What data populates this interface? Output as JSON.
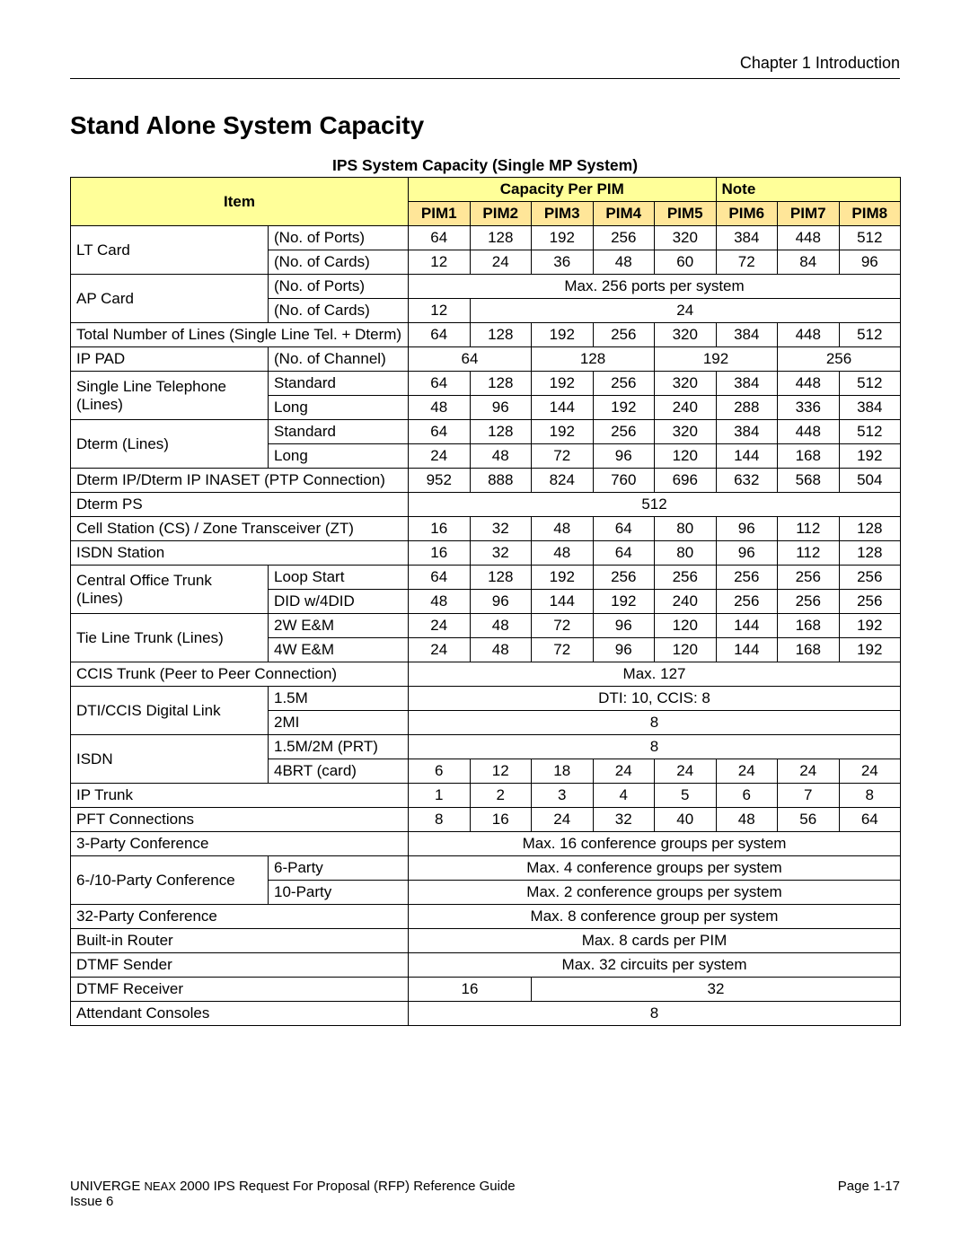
{
  "page": {
    "chapter_label": "Chapter 1   Introduction",
    "main_title": "Stand Alone System Capacity",
    "table_title": "IPS System Capacity (Single MP System)",
    "footer_left_line1_a": "UNIVERGE ",
    "footer_left_line1_b": "NEAX",
    "footer_left_line1_c": " 2000 IPS Request For Proposal (RFP) Reference Guide",
    "footer_left_line2": "Issue 6",
    "footer_right": "Page 1-17"
  },
  "colors": {
    "header_item_bg": "#ffff99",
    "header_pim_bg": "#ffe699",
    "border": "#000000",
    "text": "#000000",
    "background": "#ffffff"
  },
  "headers": {
    "item": "Item",
    "cap_per_pim": "Capacity Per PIM",
    "note": "Note",
    "pims": [
      "PIM1",
      "PIM2",
      "PIM3",
      "PIM4",
      "PIM5",
      "PIM6",
      "PIM7",
      "PIM8"
    ]
  },
  "rows": {
    "lt_card": {
      "label": "LT Card",
      "sub1": "(No. of Ports)",
      "sub2": "(No. of Cards)",
      "ports": [
        "64",
        "128",
        "192",
        "256",
        "320",
        "384",
        "448",
        "512"
      ],
      "cards": [
        "12",
        "24",
        "36",
        "48",
        "60",
        "72",
        "84",
        "96"
      ]
    },
    "ap_card": {
      "label": "AP Card",
      "sub1": "(No. of Ports)",
      "sub2": "(No. of Cards)",
      "ports_text": "Max. 256 ports per system",
      "cards_first": "12",
      "cards_rest": "24"
    },
    "total_lines": {
      "label": "Total Number of Lines (Single Line Tel. + Dterm)",
      "vals": [
        "64",
        "128",
        "192",
        "256",
        "320",
        "384",
        "448",
        "512"
      ]
    },
    "ip_pad": {
      "label": "IP PAD",
      "sub": "(No. of Channel)",
      "vals_pairs": [
        "64",
        "128",
        "192",
        "256"
      ]
    },
    "slt": {
      "label": "Single Line Telephone (Lines)",
      "std_label": "Standard",
      "long_label": "Long",
      "std": [
        "64",
        "128",
        "192",
        "256",
        "320",
        "384",
        "448",
        "512"
      ],
      "long": [
        "48",
        "96",
        "144",
        "192",
        "240",
        "288",
        "336",
        "384"
      ]
    },
    "dterm_lines": {
      "label": "Dterm (Lines)",
      "std_label": "Standard",
      "long_label": "Long",
      "std": [
        "64",
        "128",
        "192",
        "256",
        "320",
        "384",
        "448",
        "512"
      ],
      "long": [
        "24",
        "48",
        "72",
        "96",
        "120",
        "144",
        "168",
        "192"
      ]
    },
    "dterm_ip_ptp": {
      "label": "Dterm IP/Dterm IP INASET (PTP Connection)",
      "vals": [
        "952",
        "888",
        "824",
        "760",
        "696",
        "632",
        "568",
        "504"
      ]
    },
    "dterm_ps": {
      "label": "Dterm PS",
      "val": "512"
    },
    "cell_station": {
      "label": "Cell Station (CS) / Zone Transceiver (ZT)",
      "vals": [
        "16",
        "32",
        "48",
        "64",
        "80",
        "96",
        "112",
        "128"
      ]
    },
    "isdn_station": {
      "label": "ISDN Station",
      "vals": [
        "16",
        "32",
        "48",
        "64",
        "80",
        "96",
        "112",
        "128"
      ]
    },
    "co_trunk": {
      "label": "Central Office Trunk (Lines)",
      "loop_label": "Loop Start",
      "did_label": "DID w/4DID",
      "loop": [
        "64",
        "128",
        "192",
        "256",
        "256",
        "256",
        "256",
        "256"
      ],
      "did": [
        "48",
        "96",
        "144",
        "192",
        "240",
        "256",
        "256",
        "256"
      ]
    },
    "tie_line": {
      "label": "Tie Line Trunk (Lines)",
      "l2w": "2W E&M",
      "l4w": "4W E&M",
      "v2w": [
        "24",
        "48",
        "72",
        "96",
        "120",
        "144",
        "168",
        "192"
      ],
      "v4w": [
        "24",
        "48",
        "72",
        "96",
        "120",
        "144",
        "168",
        "192"
      ]
    },
    "ccis_trunk": {
      "label": "CCIS Trunk  (Peer to Peer Connection)",
      "val": "Max. 127"
    },
    "dti_ccis": {
      "label": "DTI/CCIS Digital Link",
      "l15": "1.5M",
      "l2": "2MI",
      "v15": "DTI: 10, CCIS: 8",
      "v2": "8"
    },
    "isdn": {
      "label": "ISDN",
      "l15_2m": "1.5M/2M (PRT)",
      "l4brt": "4BRT (card)",
      "v15_2m": "8",
      "v4brt": [
        "6",
        "12",
        "18",
        "24",
        "24",
        "24",
        "24",
        "24"
      ]
    },
    "ip_trunk": {
      "label": "IP Trunk",
      "vals": [
        "1",
        "2",
        "3",
        "4",
        "5",
        "6",
        "7",
        "8"
      ]
    },
    "pft": {
      "label": "PFT Connections",
      "vals": [
        "8",
        "16",
        "24",
        "32",
        "40",
        "48",
        "56",
        "64"
      ]
    },
    "party3": {
      "label": "3-Party Conference",
      "val": "Max. 16 conference groups per system"
    },
    "party6_10": {
      "label": "6-/10-Party Conference",
      "l6": "6-Party",
      "l10": "10-Party",
      "v6": "Max. 4 conference groups per system",
      "v10": "Max. 2 conference groups per system"
    },
    "party32": {
      "label": "32-Party Conference",
      "val": "Max. 8 conference group per system"
    },
    "router": {
      "label": "Built-in Router",
      "val": "Max. 8 cards per PIM"
    },
    "dtmf_sender": {
      "label": "DTMF Sender",
      "val": "Max. 32 circuits per system"
    },
    "dtmf_receiver": {
      "label": "DTMF Receiver",
      "v1": "16",
      "v2": "32"
    },
    "attendant": {
      "label": "Attendant Consoles",
      "val": "8"
    }
  }
}
